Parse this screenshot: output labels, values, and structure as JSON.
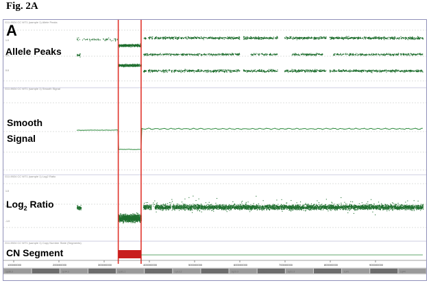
{
  "figure_label": "Fig. 2A",
  "panel_letter": "A",
  "colors": {
    "data": "#1e6e2e",
    "smooth": "#2c8a3c",
    "highlight": "#e0322a",
    "segment": "#c81e1e",
    "dashed": "#b9c0b9",
    "frame": "#8f8fb8",
    "scrollbar": "#6d6d6d"
  },
  "chart_data": {
    "type": "scatter",
    "tracks": [
      {
        "id": "allele-peaks",
        "label": "Allele Peaks",
        "header": "G11 8924 CC WT1 (sample 1) Allele Peaks",
        "y_ticks": [
          "1.0",
          "0.5",
          "0.0"
        ],
        "normal_bands": [
          0.0,
          0.5,
          1.0
        ],
        "deleted_region_bands": [
          0.0,
          1.0
        ]
      },
      {
        "id": "smooth-signal",
        "label_lines": [
          "Smooth",
          "Signal"
        ],
        "header": "G11 8924 CC WT1 (sample 1) Smooth Signal",
        "normal_level": 2.0,
        "deleted_region_level": 1.0
      },
      {
        "id": "log2-ratio",
        "label_main": "Log",
        "label_sub": "2",
        "label_rest": " Ratio",
        "header": "G11 8924 CC WT1 (sample 1) Log2 Ratio",
        "y_ticks": [
          "1.0",
          "0.0",
          "-1.0"
        ],
        "normal_mean": 0.0,
        "deleted_region_mean": -0.55
      },
      {
        "id": "cn-segment",
        "label": "CN Segment",
        "header": "G11 8924 CC WT1 (sample 1) Copy Number State (Segments)",
        "segments": [
          {
            "start": 0.12,
            "end": 0.186,
            "state": "loss"
          }
        ]
      }
    ],
    "highlight_region": {
      "start": 0.12,
      "end": 0.186
    },
    "gaps": [
      0.186,
      0.192
    ],
    "x_axis_ticks": [
      "100000000",
      "200000000",
      "300000000",
      "400000000",
      "500000000",
      "600000000",
      "700000000",
      "800000000",
      "900000000"
    ]
  },
  "scrollbar_labels": [
    "1p36.3",
    "1p35",
    "1p34.2",
    "1p32.3",
    "1p31.1",
    "1p22.1",
    "1p13.2",
    "1q21.3",
    "1q23.3",
    "1q25.2",
    "1q31.3",
    "1q32.2",
    "1q41",
    "1q42.2",
    "1q44"
  ]
}
